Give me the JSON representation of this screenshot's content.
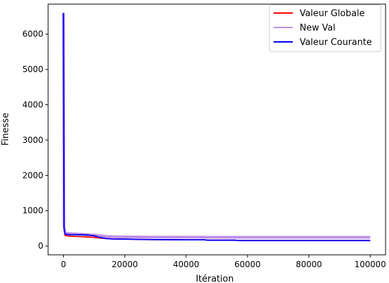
{
  "chart_data": {
    "type": "line",
    "title": "",
    "xlabel": "Itération",
    "ylabel": "Finesse",
    "xlim": [
      -5000,
      105000
    ],
    "ylim": [
      -250,
      6850
    ],
    "grid": false,
    "legend_position": "top-right",
    "x_ticks": [
      0,
      20000,
      40000,
      60000,
      80000,
      100000
    ],
    "x_tick_labels": [
      "0",
      "20000",
      "40000",
      "60000",
      "80000",
      "100000"
    ],
    "y_ticks": [
      0,
      1000,
      2000,
      3000,
      4000,
      5000,
      6000
    ],
    "y_tick_labels": [
      "0",
      "1000",
      "2000",
      "3000",
      "4000",
      "5000",
      "6000"
    ],
    "series": [
      {
        "name": "Valeur Globale",
        "color": "#ff0000",
        "x": [
          0,
          200,
          500,
          1000,
          2000,
          4000,
          6000,
          8000,
          10000,
          12000,
          14000,
          16000,
          20000,
          25000,
          30000,
          40000,
          46000,
          47000,
          56000,
          57000,
          70000,
          80000,
          90000,
          100000
        ],
        "y": [
          6600,
          500,
          300,
          290,
          280,
          270,
          265,
          255,
          245,
          225,
          210,
          200,
          195,
          185,
          180,
          175,
          175,
          165,
          165,
          155,
          155,
          155,
          155,
          155
        ]
      },
      {
        "name": "New Val",
        "color": "#bf8fe8",
        "x": [
          0,
          200,
          500,
          1000,
          2000,
          4000,
          6000,
          8000,
          10000,
          12000,
          14000,
          16000,
          20000,
          25000,
          30000,
          40000,
          50000,
          60000,
          70000,
          80000,
          90000,
          100000
        ],
        "y": [
          6600,
          560,
          380,
          360,
          350,
          340,
          330,
          320,
          310,
          290,
          270,
          262,
          258,
          255,
          252,
          250,
          248,
          246,
          245,
          245,
          245,
          245
        ]
      },
      {
        "name": "Valeur Courante",
        "color": "#0000ff",
        "x": [
          0,
          200,
          500,
          1000,
          2000,
          4000,
          6000,
          8000,
          10000,
          12000,
          14000,
          16000,
          20000,
          25000,
          30000,
          40000,
          46000,
          47000,
          56000,
          57000,
          70000,
          80000,
          90000,
          100000
        ],
        "y": [
          6600,
          520,
          340,
          330,
          320,
          320,
          320,
          310,
          290,
          240,
          210,
          200,
          195,
          185,
          180,
          175,
          175,
          165,
          165,
          155,
          155,
          155,
          155,
          155
        ]
      }
    ]
  }
}
